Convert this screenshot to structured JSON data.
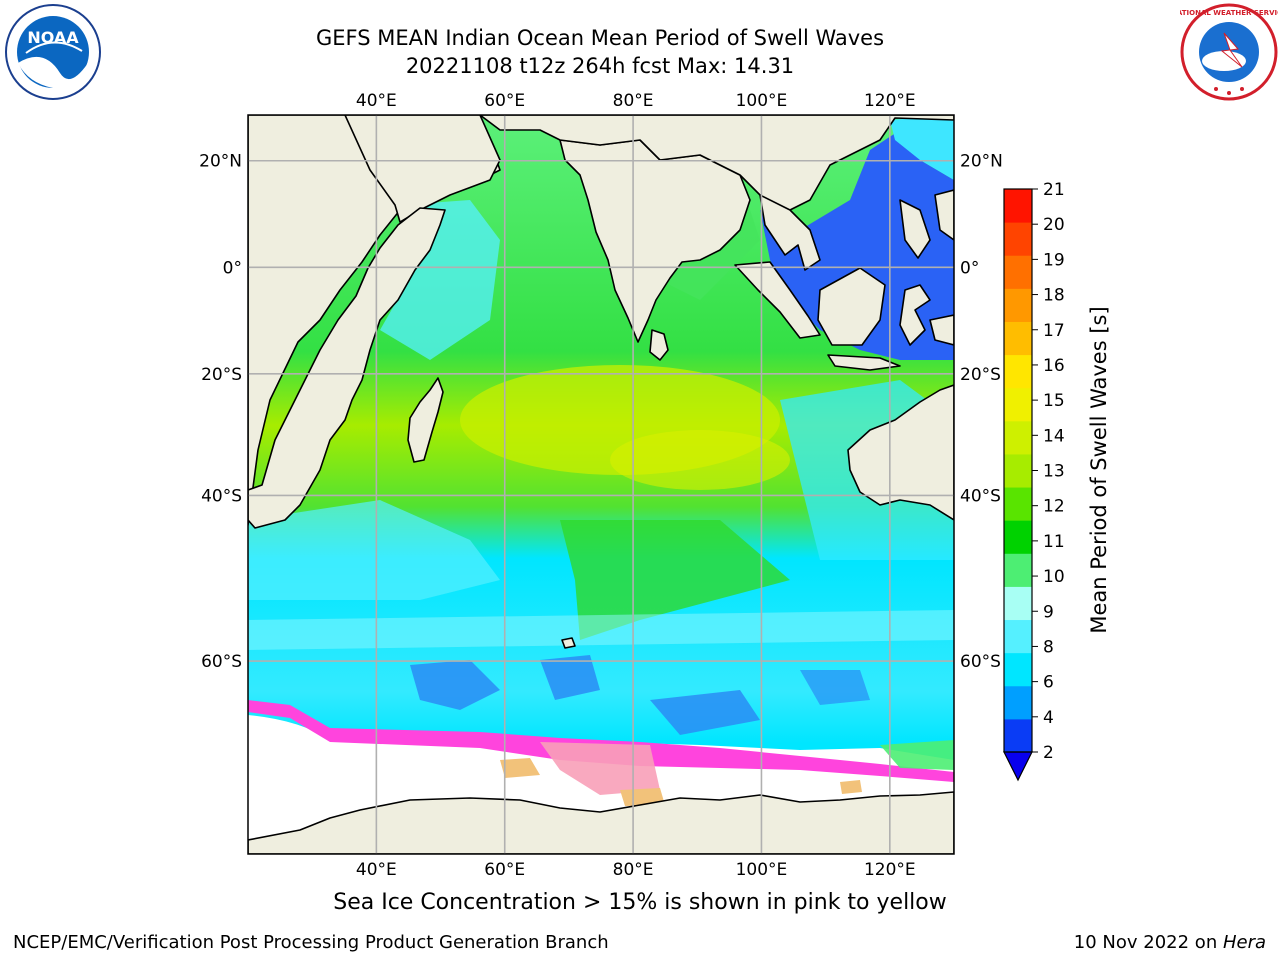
{
  "header": {
    "title_line1": "GEFS MEAN Indian Ocean Mean Period of Swell Waves",
    "title_line2": "20221108 t12z 264h fcst   Max: 14.31"
  },
  "map": {
    "lon_labels": [
      "40°E",
      "60°E",
      "80°E",
      "100°E",
      "120°E"
    ],
    "lat_labels": [
      "20°N",
      "0°",
      "20°S",
      "40°S",
      "60°S"
    ],
    "lon_values": [
      40,
      60,
      80,
      100,
      120
    ],
    "lat_values": [
      20,
      0,
      -20,
      -40,
      -60
    ],
    "lon_range": [
      20,
      130
    ],
    "lat_range": [
      -74,
      28
    ],
    "land_color": "#efeedf",
    "grid_color": "#b0b0b0"
  },
  "colorbar": {
    "title": "Mean Period of Swell Waves [s]",
    "levels": [
      "2",
      "4",
      "6",
      "8",
      "9",
      "10",
      "11",
      "12",
      "13",
      "14",
      "15",
      "16",
      "17",
      "18",
      "19",
      "20",
      "21"
    ],
    "colors": [
      "#0a3cf5",
      "#009fff",
      "#00e6ff",
      "#55f0ff",
      "#a8fff4",
      "#4dee73",
      "#00d200",
      "#59e400",
      "#a7ec00",
      "#cef000",
      "#f0f000",
      "#ffe600",
      "#ffbd00",
      "#ff9800",
      "#ff7000",
      "#ff4400",
      "#ff1400"
    ],
    "under_color": "#0800ee"
  },
  "caption": "Sea Ice Concentration > 15% is shown in pink to yellow",
  "footer": {
    "left": "NCEP/EMC/Verification Post Processing Product Generation Branch",
    "right_date": "10 Nov 2022 on ",
    "right_machine": "Hera"
  },
  "logos": {
    "left_text": "NOAA",
    "right_text": "NATIONAL WEATHER SERVICE"
  }
}
